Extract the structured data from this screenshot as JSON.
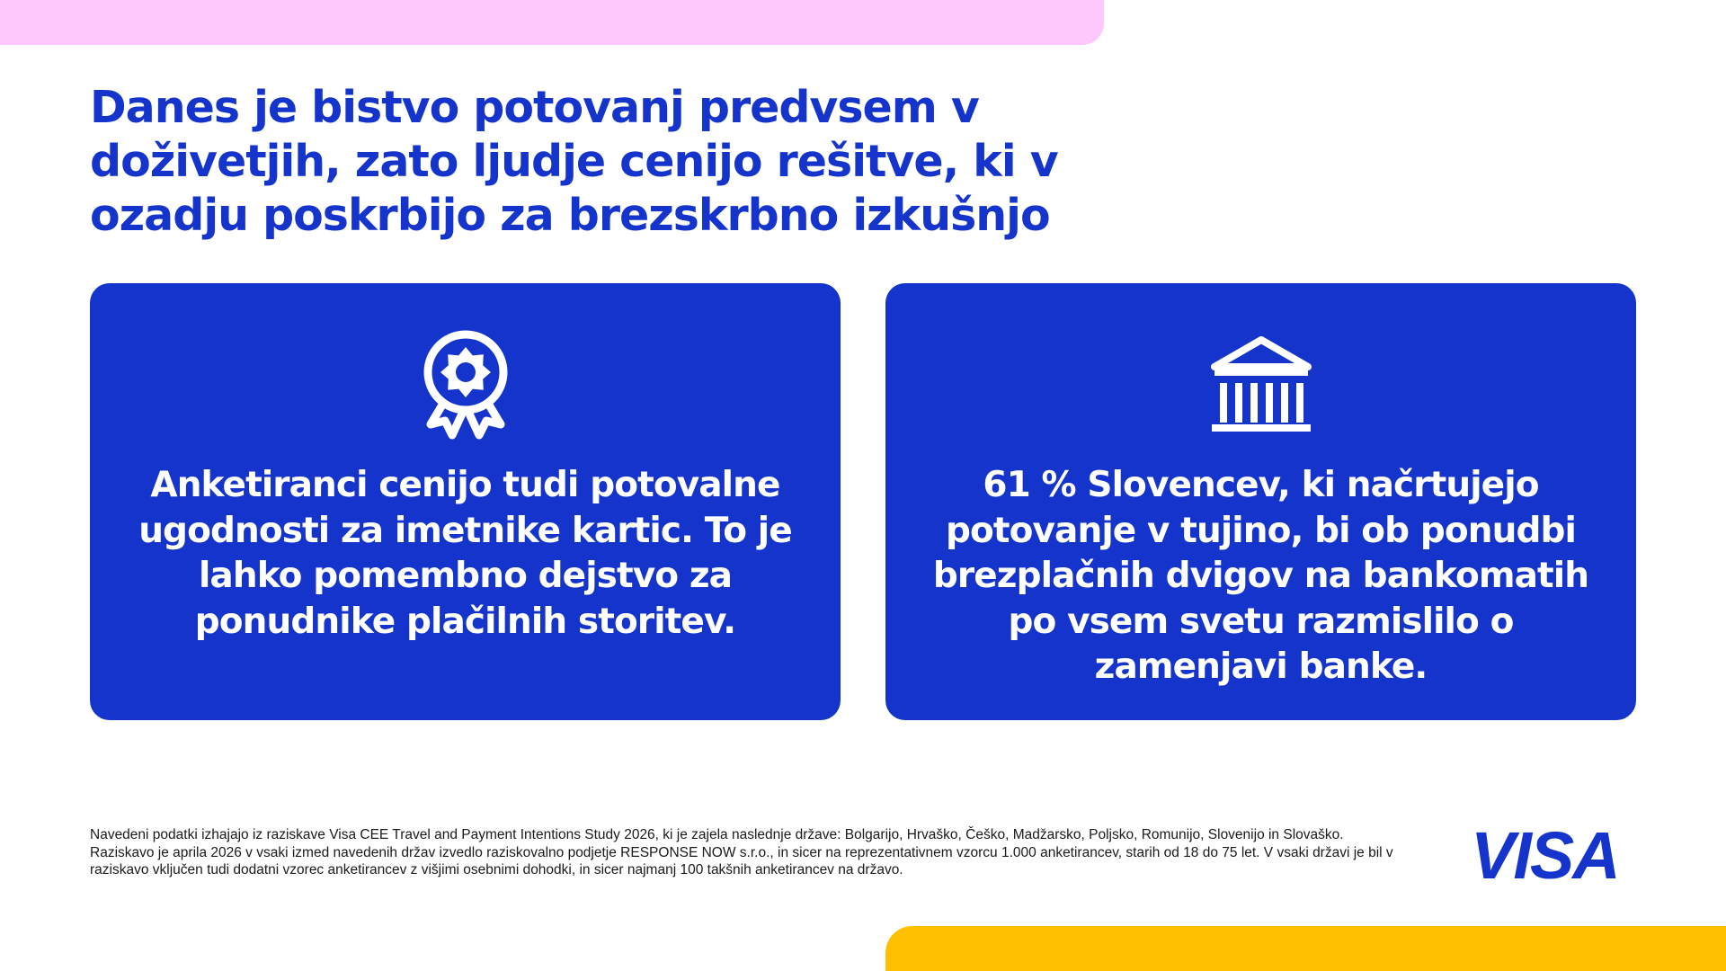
{
  "headline": "Danes je bistvo potovanj predvsem v doživetjih, zato ljudje cenijo rešitve, ki v ozadju poskrbijo za brezskrbno izkušnjo",
  "cards": [
    {
      "icon": "award-ribbon-icon",
      "text": "Anketiranci cenijo tudi potovalne ugodnosti za imetnike kartic. To je lahko pomembno dejstvo za ponudnike plačilnih storitev."
    },
    {
      "icon": "bank-building-icon",
      "text": "61 % Slovencev, ki načrtujejo potovanje v tujino, bi ob ponudbi brezplačnih dvigov na bankomatih po vsem svetu razmislilo o zamenjavi banke."
    }
  ],
  "footnote": "Navedeni podatki izhajajo iz raziskave Visa CEE Travel and Payment Intentions Study 2026, ki je zajela naslednje države: Bolgarijo, Hrvaško, Češko, Madžarsko, Poljsko, Romunijo, Slovenijo in Slovaško.  Raziskavo je aprila 2026 v vsaki izmed navedenih držav izvedlo raziskovalno podjetje RESPONSE NOW s.r.o., in sicer na reprezentativnem vzorcu 1.000 anketirancev, starih od 18 do 75 let. V vsaki državi je bil v raziskavo vključen tudi dodatni vzorec anketirancev z višjimi osebnimi dohodki, in sicer najmanj 100 takšnih anketirancev na državo.",
  "logo": "VISA",
  "colors": {
    "brand_blue": "#1434cb",
    "accent_pink": "#fec8fc",
    "accent_yellow": "#fdbf00",
    "background": "#ffffff"
  }
}
